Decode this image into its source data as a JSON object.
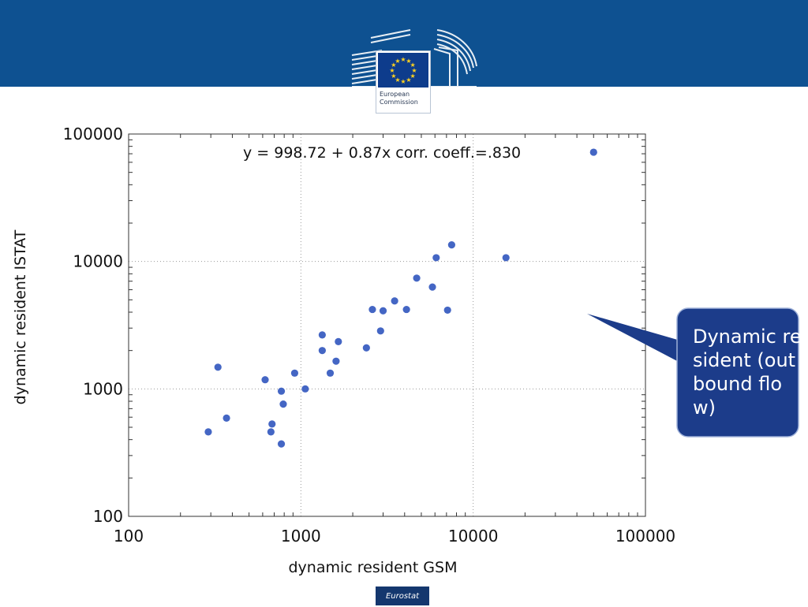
{
  "branding": {
    "org_line1": "European",
    "org_line2": "Commission",
    "footer_badge": "Eurostat"
  },
  "callout": {
    "text": "Dynamic resident (outbound flow)"
  },
  "colors": {
    "banner": "#0e5191",
    "points": "#4466c4",
    "callout_fill": "#1c3c8a"
  },
  "chart_data": {
    "type": "scatter",
    "xlabel": "dynamic resident GSM",
    "ylabel": "dynamic resident ISTAT",
    "annotation": "y = 998.72 + 0.87x  corr. coeff.=.830",
    "x_scale": "log",
    "y_scale": "log",
    "xlim": [
      100,
      100000
    ],
    "ylim": [
      100,
      100000
    ],
    "x_ticks": [
      "100",
      "1000",
      "10000",
      "100000"
    ],
    "y_ticks": [
      "100",
      "1000",
      "10000",
      "100000"
    ],
    "grid": true,
    "points": [
      {
        "x": 50000,
        "y": 72000
      },
      {
        "x": 15500,
        "y": 10700
      },
      {
        "x": 7500,
        "y": 13500
      },
      {
        "x": 6100,
        "y": 10700
      },
      {
        "x": 4700,
        "y": 7400
      },
      {
        "x": 5800,
        "y": 6300
      },
      {
        "x": 7100,
        "y": 4150
      },
      {
        "x": 3500,
        "y": 4900
      },
      {
        "x": 4100,
        "y": 4200
      },
      {
        "x": 3000,
        "y": 4100
      },
      {
        "x": 2600,
        "y": 4200
      },
      {
        "x": 2900,
        "y": 2850
      },
      {
        "x": 2400,
        "y": 2100
      },
      {
        "x": 1650,
        "y": 2350
      },
      {
        "x": 1330,
        "y": 2650
      },
      {
        "x": 1330,
        "y": 2000
      },
      {
        "x": 1600,
        "y": 1650
      },
      {
        "x": 1480,
        "y": 1330
      },
      {
        "x": 920,
        "y": 1330
      },
      {
        "x": 1060,
        "y": 1000
      },
      {
        "x": 620,
        "y": 1180
      },
      {
        "x": 770,
        "y": 960
      },
      {
        "x": 790,
        "y": 760
      },
      {
        "x": 330,
        "y": 1480
      },
      {
        "x": 370,
        "y": 590
      },
      {
        "x": 290,
        "y": 460
      },
      {
        "x": 680,
        "y": 530
      },
      {
        "x": 670,
        "y": 460
      },
      {
        "x": 770,
        "y": 370
      }
    ]
  }
}
